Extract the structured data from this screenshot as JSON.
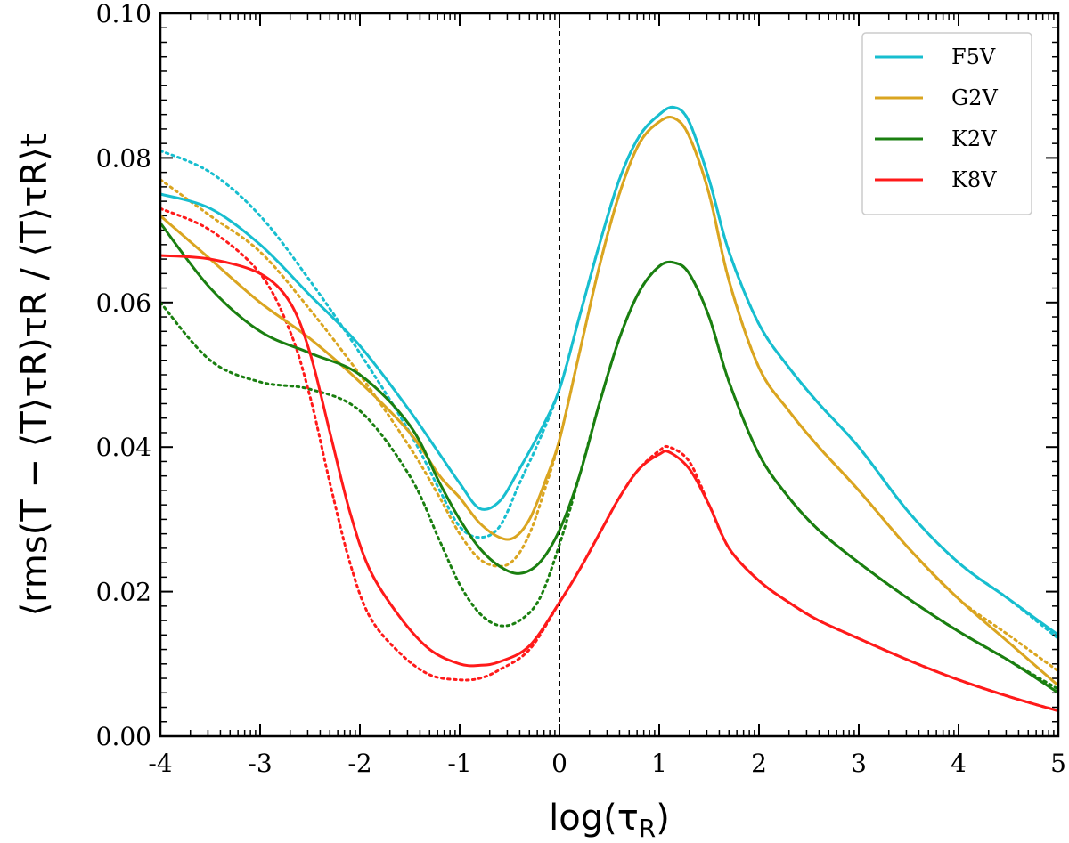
{
  "chart_data": {
    "type": "line",
    "title": "",
    "xlabel": "log(τ",
    "xlabel_sub": "R",
    "xlabel_close": ")",
    "ylabel": "⟨rms(T − ⟨T⟩τR)τR / ⟨T⟩τR⟩t",
    "xlim": [
      -4,
      5
    ],
    "ylim": [
      0.0,
      0.1
    ],
    "x_ticks": [
      -4,
      -3,
      -2,
      -1,
      0,
      1,
      2,
      3,
      4,
      5
    ],
    "x_tick_labels": [
      "-4",
      "-3",
      "-2",
      "-1",
      "0",
      "1",
      "2",
      "3",
      "4",
      "5"
    ],
    "y_ticks": [
      0.0,
      0.02,
      0.04,
      0.06,
      0.08,
      0.1
    ],
    "y_tick_labels": [
      "0.00",
      "0.02",
      "0.04",
      "0.06",
      "0.08",
      "0.10"
    ],
    "vline_x": 0,
    "legend_position": "top-right",
    "series": [
      {
        "name": "F5V",
        "color": "#17becf",
        "solid": [
          [
            -4,
            0.075
          ],
          [
            -3.5,
            0.073
          ],
          [
            -3,
            0.068
          ],
          [
            -2.5,
            0.061
          ],
          [
            -2,
            0.054
          ],
          [
            -1.5,
            0.045
          ],
          [
            -1.2,
            0.039
          ],
          [
            -1,
            0.035
          ],
          [
            -0.8,
            0.0315
          ],
          [
            -0.6,
            0.0325
          ],
          [
            -0.4,
            0.037
          ],
          [
            -0.2,
            0.042
          ],
          [
            0,
            0.048
          ],
          [
            0.2,
            0.058
          ],
          [
            0.4,
            0.068
          ],
          [
            0.6,
            0.077
          ],
          [
            0.8,
            0.083
          ],
          [
            1,
            0.086
          ],
          [
            1.15,
            0.087
          ],
          [
            1.3,
            0.085
          ],
          [
            1.5,
            0.077
          ],
          [
            1.7,
            0.067
          ],
          [
            2,
            0.057
          ],
          [
            2.3,
            0.051
          ],
          [
            2.6,
            0.046
          ],
          [
            3,
            0.04
          ],
          [
            3.5,
            0.031
          ],
          [
            4,
            0.024
          ],
          [
            4.5,
            0.019
          ],
          [
            5,
            0.014
          ]
        ],
        "dotted": [
          [
            -4,
            0.081
          ],
          [
            -3.5,
            0.078
          ],
          [
            -3,
            0.072
          ],
          [
            -2.5,
            0.063
          ],
          [
            -2,
            0.053
          ],
          [
            -1.5,
            0.042
          ],
          [
            -1.2,
            0.034
          ],
          [
            -1,
            0.029
          ],
          [
            -0.8,
            0.0275
          ],
          [
            -0.6,
            0.029
          ],
          [
            -0.4,
            0.035
          ],
          [
            -0.2,
            0.041
          ],
          [
            0,
            0.048
          ],
          [
            0.2,
            0.058
          ],
          [
            0.4,
            0.068
          ],
          [
            0.6,
            0.077
          ],
          [
            0.8,
            0.083
          ],
          [
            1,
            0.086
          ],
          [
            1.15,
            0.087
          ],
          [
            1.3,
            0.085
          ],
          [
            1.5,
            0.077
          ],
          [
            1.7,
            0.067
          ],
          [
            2,
            0.057
          ],
          [
            2.3,
            0.051
          ],
          [
            2.6,
            0.046
          ],
          [
            3,
            0.04
          ],
          [
            3.5,
            0.031
          ],
          [
            4,
            0.024
          ],
          [
            4.5,
            0.019
          ],
          [
            5,
            0.0135
          ]
        ]
      },
      {
        "name": "G2V",
        "color": "#daa520",
        "solid": [
          [
            -4,
            0.072
          ],
          [
            -3.5,
            0.066
          ],
          [
            -3,
            0.06
          ],
          [
            -2.5,
            0.055
          ],
          [
            -2,
            0.049
          ],
          [
            -1.5,
            0.042
          ],
          [
            -1.2,
            0.036
          ],
          [
            -1,
            0.033
          ],
          [
            -0.8,
            0.0295
          ],
          [
            -0.6,
            0.0275
          ],
          [
            -0.45,
            0.0275
          ],
          [
            -0.3,
            0.03
          ],
          [
            -0.15,
            0.035
          ],
          [
            0,
            0.041
          ],
          [
            0.2,
            0.053
          ],
          [
            0.4,
            0.065
          ],
          [
            0.6,
            0.075
          ],
          [
            0.8,
            0.082
          ],
          [
            1,
            0.085
          ],
          [
            1.15,
            0.0855
          ],
          [
            1.3,
            0.083
          ],
          [
            1.5,
            0.075
          ],
          [
            1.7,
            0.063
          ],
          [
            2,
            0.051
          ],
          [
            2.3,
            0.045
          ],
          [
            2.6,
            0.04
          ],
          [
            3,
            0.034
          ],
          [
            3.5,
            0.026
          ],
          [
            4,
            0.019
          ],
          [
            4.5,
            0.013
          ],
          [
            5,
            0.007
          ]
        ],
        "dotted": [
          [
            -4,
            0.077
          ],
          [
            -3.5,
            0.072
          ],
          [
            -3,
            0.067
          ],
          [
            -2.5,
            0.059
          ],
          [
            -2,
            0.05
          ],
          [
            -1.5,
            0.04
          ],
          [
            -1.2,
            0.033
          ],
          [
            -1,
            0.028
          ],
          [
            -0.8,
            0.0245
          ],
          [
            -0.6,
            0.0235
          ],
          [
            -0.45,
            0.0245
          ],
          [
            -0.3,
            0.028
          ],
          [
            -0.15,
            0.034
          ],
          [
            0,
            0.041
          ],
          [
            0.2,
            0.053
          ],
          [
            0.4,
            0.065
          ],
          [
            0.6,
            0.075
          ],
          [
            0.8,
            0.082
          ],
          [
            1,
            0.085
          ],
          [
            1.15,
            0.0855
          ],
          [
            1.3,
            0.083
          ],
          [
            1.5,
            0.075
          ],
          [
            1.7,
            0.063
          ],
          [
            2,
            0.051
          ],
          [
            2.3,
            0.045
          ],
          [
            2.6,
            0.04
          ],
          [
            3,
            0.034
          ],
          [
            3.5,
            0.026
          ],
          [
            4,
            0.019
          ],
          [
            4.5,
            0.014
          ],
          [
            5,
            0.009
          ]
        ]
      },
      {
        "name": "K2V",
        "color": "#1a7f10",
        "solid": [
          [
            -4,
            0.071
          ],
          [
            -3.5,
            0.062
          ],
          [
            -3,
            0.056
          ],
          [
            -2.5,
            0.053
          ],
          [
            -2,
            0.05
          ],
          [
            -1.5,
            0.043
          ],
          [
            -1.2,
            0.035
          ],
          [
            -1,
            0.03
          ],
          [
            -0.8,
            0.026
          ],
          [
            -0.6,
            0.0235
          ],
          [
            -0.4,
            0.0225
          ],
          [
            -0.2,
            0.024
          ],
          [
            0,
            0.0285
          ],
          [
            0.2,
            0.036
          ],
          [
            0.4,
            0.046
          ],
          [
            0.6,
            0.055
          ],
          [
            0.8,
            0.0615
          ],
          [
            1,
            0.065
          ],
          [
            1.15,
            0.0655
          ],
          [
            1.3,
            0.064
          ],
          [
            1.5,
            0.058
          ],
          [
            1.7,
            0.049
          ],
          [
            2,
            0.039
          ],
          [
            2.3,
            0.033
          ],
          [
            2.6,
            0.0285
          ],
          [
            3,
            0.024
          ],
          [
            3.5,
            0.019
          ],
          [
            4,
            0.0145
          ],
          [
            4.5,
            0.0105
          ],
          [
            5,
            0.006
          ]
        ],
        "dotted": [
          [
            -4,
            0.06
          ],
          [
            -3.5,
            0.052
          ],
          [
            -3,
            0.049
          ],
          [
            -2.5,
            0.048
          ],
          [
            -2,
            0.045
          ],
          [
            -1.5,
            0.036
          ],
          [
            -1.2,
            0.027
          ],
          [
            -1,
            0.021
          ],
          [
            -0.8,
            0.017
          ],
          [
            -0.6,
            0.0153
          ],
          [
            -0.4,
            0.016
          ],
          [
            -0.2,
            0.019
          ],
          [
            0,
            0.0265
          ],
          [
            0.2,
            0.036
          ],
          [
            0.4,
            0.046
          ],
          [
            0.6,
            0.055
          ],
          [
            0.8,
            0.0615
          ],
          [
            1,
            0.065
          ],
          [
            1.15,
            0.0655
          ],
          [
            1.3,
            0.064
          ],
          [
            1.5,
            0.058
          ],
          [
            1.7,
            0.049
          ],
          [
            2,
            0.039
          ],
          [
            2.3,
            0.033
          ],
          [
            2.6,
            0.0285
          ],
          [
            3,
            0.024
          ],
          [
            3.5,
            0.019
          ],
          [
            4,
            0.0145
          ],
          [
            4.5,
            0.0105
          ],
          [
            5,
            0.0065
          ]
        ]
      },
      {
        "name": "K8V",
        "color": "#ff1a1a",
        "solid": [
          [
            -4,
            0.0665
          ],
          [
            -3.5,
            0.066
          ],
          [
            -3,
            0.064
          ],
          [
            -2.7,
            0.06
          ],
          [
            -2.5,
            0.053
          ],
          [
            -2.3,
            0.042
          ],
          [
            -2.1,
            0.031
          ],
          [
            -1.9,
            0.023
          ],
          [
            -1.6,
            0.0165
          ],
          [
            -1.3,
            0.012
          ],
          [
            -1,
            0.01
          ],
          [
            -0.8,
            0.0098
          ],
          [
            -0.6,
            0.0103
          ],
          [
            -0.3,
            0.0125
          ],
          [
            0,
            0.0185
          ],
          [
            0.2,
            0.023
          ],
          [
            0.4,
            0.028
          ],
          [
            0.6,
            0.033
          ],
          [
            0.8,
            0.037
          ],
          [
            1,
            0.039
          ],
          [
            1.1,
            0.0393
          ],
          [
            1.3,
            0.037
          ],
          [
            1.5,
            0.032
          ],
          [
            1.7,
            0.026
          ],
          [
            2,
            0.0215
          ],
          [
            2.3,
            0.0185
          ],
          [
            2.6,
            0.016
          ],
          [
            3,
            0.0135
          ],
          [
            3.5,
            0.0105
          ],
          [
            4,
            0.0078
          ],
          [
            4.5,
            0.0055
          ],
          [
            5,
            0.0035
          ]
        ],
        "dotted": [
          [
            -4,
            0.073
          ],
          [
            -3.5,
            0.07
          ],
          [
            -3,
            0.064
          ],
          [
            -2.7,
            0.056
          ],
          [
            -2.5,
            0.047
          ],
          [
            -2.3,
            0.035
          ],
          [
            -2.1,
            0.024
          ],
          [
            -1.9,
            0.0165
          ],
          [
            -1.6,
            0.0115
          ],
          [
            -1.3,
            0.0085
          ],
          [
            -1,
            0.0078
          ],
          [
            -0.8,
            0.008
          ],
          [
            -0.6,
            0.0092
          ],
          [
            -0.3,
            0.012
          ],
          [
            0,
            0.0185
          ],
          [
            0.2,
            0.023
          ],
          [
            0.4,
            0.028
          ],
          [
            0.6,
            0.033
          ],
          [
            0.8,
            0.037
          ],
          [
            1,
            0.0395
          ],
          [
            1.1,
            0.04
          ],
          [
            1.3,
            0.038
          ],
          [
            1.5,
            0.032
          ],
          [
            1.7,
            0.026
          ],
          [
            2,
            0.0215
          ],
          [
            2.3,
            0.0185
          ],
          [
            2.6,
            0.016
          ],
          [
            3,
            0.0135
          ],
          [
            3.5,
            0.0105
          ],
          [
            4,
            0.0078
          ],
          [
            4.5,
            0.0055
          ],
          [
            5,
            0.0035
          ]
        ]
      }
    ]
  }
}
